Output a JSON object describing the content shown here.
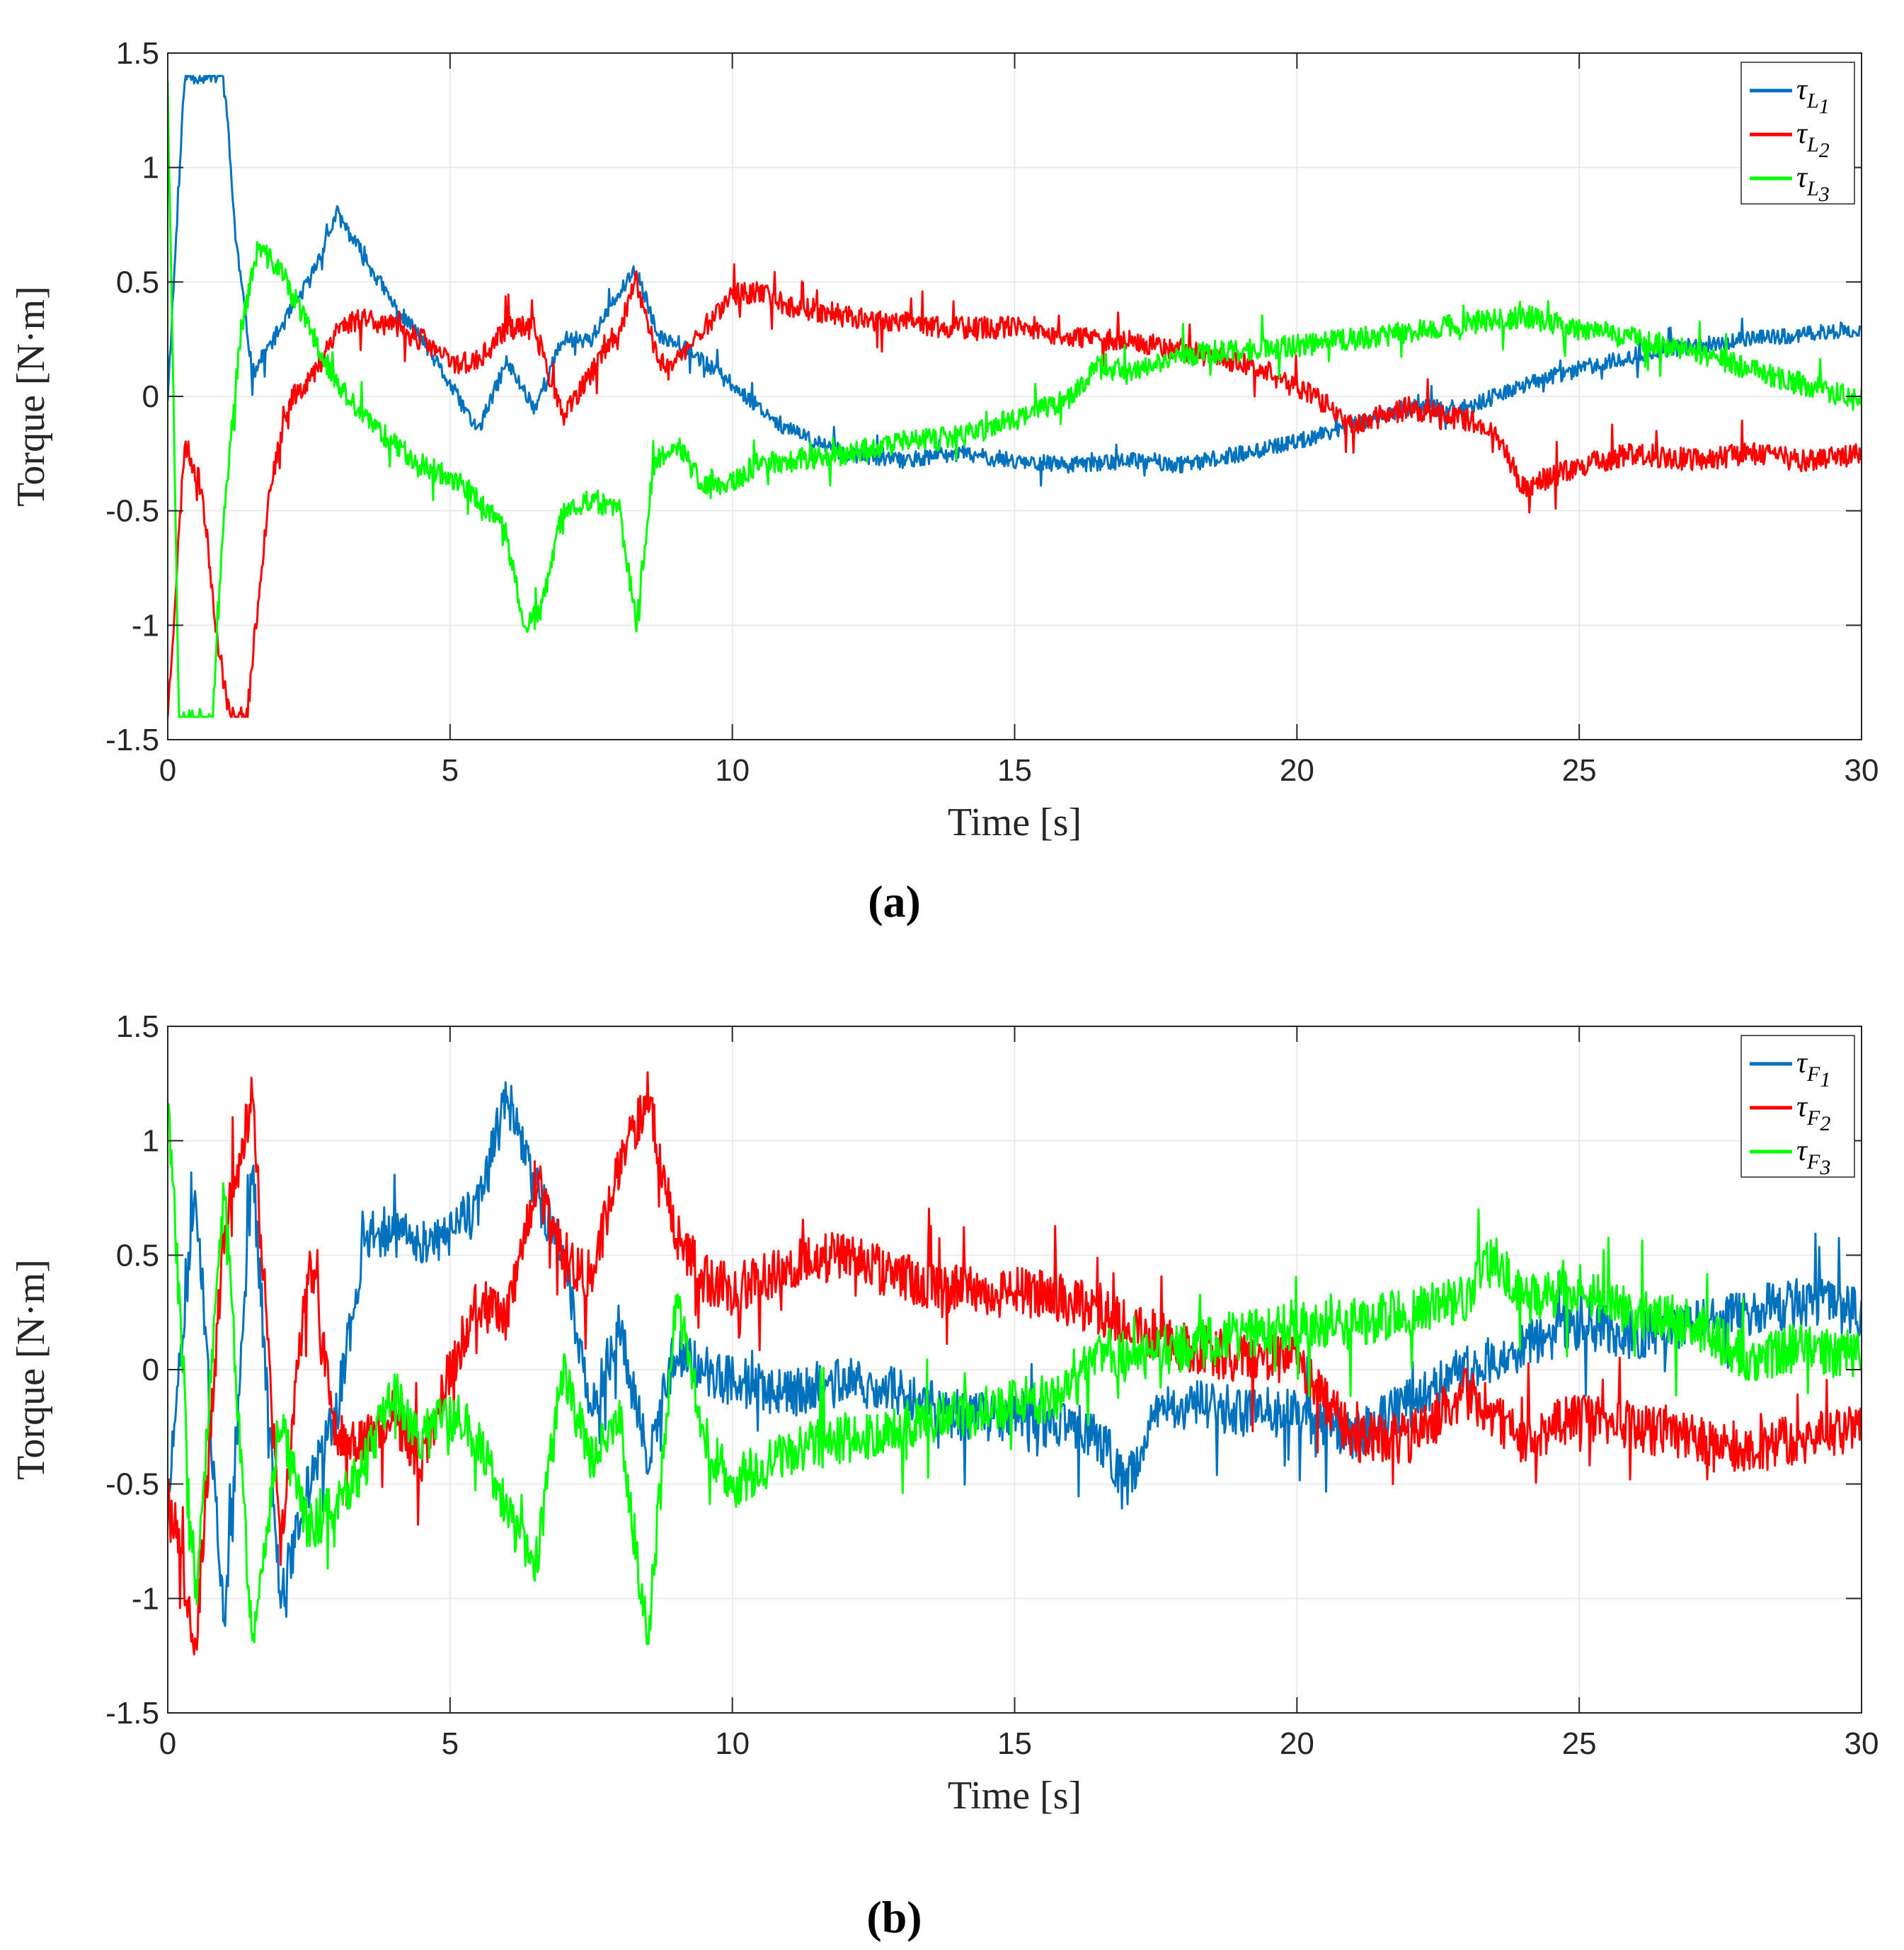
{
  "chart_data": [
    {
      "type": "line",
      "caption": "(a)",
      "title": "",
      "xlabel": "Time [s]",
      "ylabel": "Torque [N·m]",
      "xlim": [
        0,
        30
      ],
      "ylim": [
        -1.5,
        1.5
      ],
      "xticks": [
        "0",
        "5",
        "10",
        "15",
        "20",
        "25",
        "30"
      ],
      "yticks": [
        "-1.5",
        "-1",
        "-0.5",
        "0",
        "0.5",
        "1",
        "1.5"
      ],
      "grid": true,
      "legend_position": "top-right",
      "series": [
        {
          "name": "τL1",
          "symbol": "τ",
          "sub": "L",
          "subsub": "1",
          "color": "#0072BD",
          "noise": 0.035,
          "seed": 11,
          "x": [
            0,
            0.3,
            0.6,
            1.0,
            1.2,
            1.5,
            2.0,
            2.5,
            3.0,
            3.5,
            4.0,
            4.5,
            5.0,
            5.5,
            6.0,
            6.5,
            7.0,
            7.5,
            8.0,
            8.3,
            8.7,
            9.0,
            9.5,
            10.0,
            10.5,
            11.0,
            12.0,
            13.0,
            14.0,
            15.0,
            16.0,
            17.0,
            18.0,
            19.0,
            20.0,
            21.0,
            22.0,
            23.0,
            24.0,
            25.0,
            26.0,
            27.0,
            28.0,
            29.0,
            30.0
          ],
          "y": [
            0,
            1.4,
            1.4,
            1.4,
            0.7,
            0.1,
            0.3,
            0.5,
            0.8,
            0.6,
            0.4,
            0.25,
            0.05,
            -0.15,
            0.15,
            -0.05,
            0.25,
            0.25,
            0.45,
            0.55,
            0.25,
            0.25,
            0.15,
            0.05,
            -0.05,
            -0.15,
            -0.25,
            -0.28,
            -0.25,
            -0.28,
            -0.3,
            -0.28,
            -0.3,
            -0.25,
            -0.2,
            -0.12,
            -0.05,
            -0.05,
            0.05,
            0.12,
            0.18,
            0.22,
            0.25,
            0.27,
            0.3
          ]
        },
        {
          "name": "τL2",
          "symbol": "τ",
          "sub": "L",
          "subsub": "2",
          "color": "#FF0000",
          "noise": 0.05,
          "seed": 23,
          "x": [
            0,
            0.3,
            0.6,
            0.9,
            1.1,
            1.4,
            1.8,
            2.2,
            2.6,
            3.0,
            3.5,
            4.0,
            4.5,
            5.0,
            5.5,
            6.0,
            6.5,
            7.0,
            7.5,
            8.0,
            8.3,
            8.7,
            9.0,
            9.5,
            10.0,
            10.5,
            11.0,
            12.0,
            13.0,
            14.0,
            15.0,
            16.0,
            17.0,
            18.0,
            19.0,
            20.0,
            21.0,
            22.0,
            23.0,
            23.5,
            24.0,
            25.0,
            26.0,
            27.0,
            28.0,
            29.0,
            30.0
          ],
          "y": [
            -1.4,
            -0.2,
            -0.4,
            -1.1,
            -1.4,
            -1.4,
            -0.4,
            0.0,
            0.1,
            0.3,
            0.35,
            0.3,
            0.25,
            0.15,
            0.15,
            0.3,
            0.3,
            -0.1,
            0.1,
            0.3,
            0.5,
            0.15,
            0.15,
            0.3,
            0.45,
            0.45,
            0.4,
            0.35,
            0.32,
            0.3,
            0.3,
            0.25,
            0.25,
            0.2,
            0.15,
            0.05,
            -0.12,
            -0.05,
            -0.1,
            -0.15,
            -0.4,
            -0.3,
            -0.25,
            -0.28,
            -0.25,
            -0.28,
            -0.25
          ]
        },
        {
          "name": "τL3",
          "symbol": "τ",
          "sub": "L",
          "subsub": "3",
          "color": "#00FF00",
          "noise": 0.05,
          "seed": 37,
          "x": [
            0,
            0.2,
            0.5,
            0.8,
            1.0,
            1.3,
            1.6,
            2.0,
            2.5,
            3.0,
            3.5,
            4.0,
            4.5,
            5.0,
            5.5,
            6.0,
            6.3,
            6.6,
            7.0,
            7.5,
            8.0,
            8.3,
            8.6,
            9.0,
            9.5,
            10.0,
            10.5,
            11.0,
            12.0,
            13.0,
            14.0,
            15.0,
            16.0,
            16.5,
            17.0,
            18.0,
            19.0,
            20.0,
            21.0,
            22.0,
            23.0,
            24.0,
            25.0,
            26.0,
            27.0,
            28.0,
            29.0,
            30.0
          ],
          "y": [
            1.4,
            -1.4,
            -1.4,
            -1.4,
            -0.5,
            0.3,
            0.65,
            0.55,
            0.3,
            0.05,
            -0.1,
            -0.2,
            -0.3,
            -0.35,
            -0.45,
            -0.6,
            -1.0,
            -0.95,
            -0.5,
            -0.45,
            -0.5,
            -1.0,
            -0.3,
            -0.2,
            -0.4,
            -0.38,
            -0.3,
            -0.28,
            -0.25,
            -0.2,
            -0.18,
            -0.1,
            0.0,
            0.15,
            0.1,
            0.18,
            0.2,
            0.22,
            0.25,
            0.28,
            0.32,
            0.35,
            0.3,
            0.25,
            0.2,
            0.12,
            0.05,
            -0.02
          ]
        }
      ]
    },
    {
      "type": "line",
      "caption": "(b)",
      "title": "",
      "xlabel": "Time [s]",
      "ylabel": "Torque [N·m]",
      "xlim": [
        0,
        30
      ],
      "ylim": [
        -1.5,
        1.5
      ],
      "xticks": [
        "0",
        "5",
        "10",
        "15",
        "20",
        "25",
        "30"
      ],
      "yticks": [
        "-1.5",
        "-1",
        "-0.5",
        "0",
        "0.5",
        "1",
        "1.5"
      ],
      "grid": true,
      "legend_position": "top-right",
      "series": [
        {
          "name": "τF1",
          "symbol": "τ",
          "sub": "F",
          "subsub": "1",
          "color": "#0072BD",
          "noise": 0.11,
          "seed": 51,
          "x": [
            0,
            0.5,
            1.0,
            1.5,
            2.0,
            2.5,
            3.0,
            3.5,
            4.0,
            4.5,
            5.0,
            5.5,
            6.0,
            6.5,
            7.0,
            7.5,
            8.0,
            8.5,
            9.0,
            9.5,
            10.0,
            11.0,
            12.0,
            13.0,
            14.0,
            15.0,
            16.0,
            16.5,
            17.0,
            17.5,
            18.0,
            19.0,
            20.0,
            21.0,
            22.0,
            23.0,
            24.0,
            25.0,
            26.0,
            27.0,
            28.0,
            29.0,
            30.0
          ],
          "y": [
            -0.6,
            0.8,
            -1.2,
            0.9,
            -1.0,
            -0.5,
            -0.2,
            0.6,
            0.6,
            0.55,
            0.6,
            0.7,
            1.2,
            0.8,
            0.5,
            -0.2,
            0.2,
            -0.4,
            0.1,
            0.0,
            -0.05,
            -0.1,
            -0.05,
            -0.1,
            -0.2,
            -0.2,
            -0.25,
            -0.3,
            -0.5,
            -0.2,
            -0.15,
            -0.18,
            -0.2,
            -0.3,
            -0.15,
            0.0,
            0.1,
            0.2,
            0.15,
            0.2,
            0.25,
            0.3,
            0.25
          ]
        },
        {
          "name": "τF2",
          "symbol": "τ",
          "sub": "F",
          "subsub": "2",
          "color": "#FF0000",
          "noise": 0.11,
          "seed": 67,
          "x": [
            0,
            0.5,
            1.0,
            1.5,
            2.0,
            2.5,
            3.0,
            3.5,
            4.0,
            4.5,
            5.0,
            5.5,
            6.0,
            6.5,
            7.0,
            7.5,
            8.0,
            8.5,
            9.0,
            9.5,
            10.0,
            11.0,
            12.0,
            13.0,
            14.0,
            15.0,
            16.0,
            17.0,
            18.0,
            19.0,
            20.0,
            21.0,
            22.0,
            23.0,
            24.0,
            25.0,
            26.0,
            27.0,
            28.0,
            29.0,
            30.0
          ],
          "y": [
            -0.5,
            -1.2,
            0.6,
            1.2,
            -0.8,
            0.5,
            -0.3,
            -0.3,
            -0.2,
            -0.4,
            0.0,
            0.3,
            0.2,
            0.8,
            0.5,
            0.4,
            0.9,
            1.2,
            0.6,
            0.4,
            0.35,
            0.45,
            0.5,
            0.4,
            0.35,
            0.35,
            0.3,
            0.2,
            0.1,
            0.05,
            0.05,
            -0.3,
            -0.3,
            -0.1,
            -0.3,
            -0.2,
            -0.25,
            -0.3,
            -0.35,
            -0.3,
            -0.25
          ]
        },
        {
          "name": "τF3",
          "symbol": "τ",
          "sub": "F",
          "subsub": "3",
          "color": "#00FF00",
          "noise": 0.11,
          "seed": 83,
          "x": [
            0,
            0.5,
            1.0,
            1.5,
            2.0,
            2.5,
            3.0,
            3.5,
            4.0,
            4.5,
            5.0,
            5.5,
            6.0,
            6.5,
            7.0,
            7.5,
            8.0,
            8.5,
            9.0,
            9.5,
            10.0,
            11.0,
            12.0,
            13.0,
            14.0,
            15.0,
            16.0,
            16.5,
            17.0,
            18.0,
            19.0,
            20.0,
            21.0,
            22.0,
            23.0,
            23.5,
            24.0,
            25.0,
            26.0,
            27.0,
            28.0,
            29.0,
            30.0
          ],
          "y": [
            1.2,
            -1.0,
            0.8,
            -1.2,
            -0.2,
            -0.7,
            -0.6,
            -0.4,
            -0.1,
            -0.3,
            -0.2,
            -0.3,
            -0.6,
            -0.9,
            0.0,
            -0.4,
            -0.2,
            -1.2,
            0.3,
            -0.3,
            -0.5,
            -0.35,
            -0.3,
            -0.25,
            -0.2,
            -0.15,
            -0.1,
            0.1,
            0.05,
            0.1,
            0.15,
            0.2,
            0.2,
            0.25,
            0.3,
            0.5,
            0.3,
            0.35,
            0.25,
            0.2,
            0.05,
            0.1,
            0.05
          ]
        }
      ]
    }
  ]
}
